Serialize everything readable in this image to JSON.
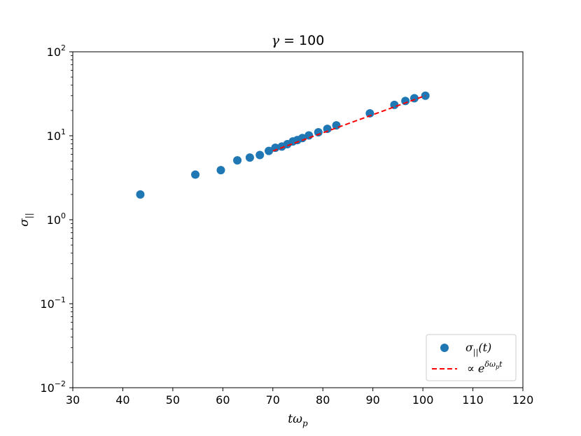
{
  "chart_data": {
    "type": "scatter",
    "title": "γ = 100",
    "xlabel": "tω",
    "xlabel_sub": "p",
    "ylabel": "σ",
    "ylabel_sub": "||",
    "xlim": [
      30,
      120
    ],
    "ylim": [
      0.01,
      100
    ],
    "yscale": "log",
    "xticks": [
      "30",
      "40",
      "50",
      "60",
      "70",
      "80",
      "90",
      "100",
      "110",
      "120"
    ],
    "yticks": [
      {
        "base": "10",
        "exp": "−2"
      },
      {
        "base": "10",
        "exp": "−1"
      },
      {
        "base": "10",
        "exp": "0"
      },
      {
        "base": "10",
        "exp": "1"
      },
      {
        "base": "10",
        "exp": "2"
      }
    ],
    "grid": false,
    "legend_position": "bottom-right",
    "series": [
      {
        "name": "σ||(t)",
        "label_main": "σ",
        "label_sub": "||",
        "label_rest": "(t)",
        "kind": "scatter",
        "color": "#1f77b4",
        "x": [
          43.5,
          54.5,
          59.6,
          62.9,
          65.4,
          67.4,
          69.2,
          70.5,
          71.8,
          72.9,
          74.0,
          74.9,
          75.9,
          77.2,
          79.1,
          80.9,
          82.7,
          89.4,
          94.3,
          96.5,
          98.3,
          100.5
        ],
        "y": [
          2.0,
          3.45,
          3.9,
          5.1,
          5.5,
          5.9,
          6.6,
          7.2,
          7.45,
          7.95,
          8.55,
          8.9,
          9.4,
          10.1,
          11.0,
          12.1,
          13.3,
          18.5,
          23.3,
          26.0,
          28.0,
          30.0
        ]
      },
      {
        "name": "∝ e^{δω_p t}",
        "label_main": "∝ e",
        "label_sup": "δω",
        "label_sup_sub": "p",
        "label_sup_rest": "t",
        "kind": "fit_line",
        "color": "#ff0000",
        "dash": "dashed",
        "x": [
          70.0,
          100.5
        ],
        "y": [
          6.6,
          30.0
        ]
      }
    ]
  }
}
